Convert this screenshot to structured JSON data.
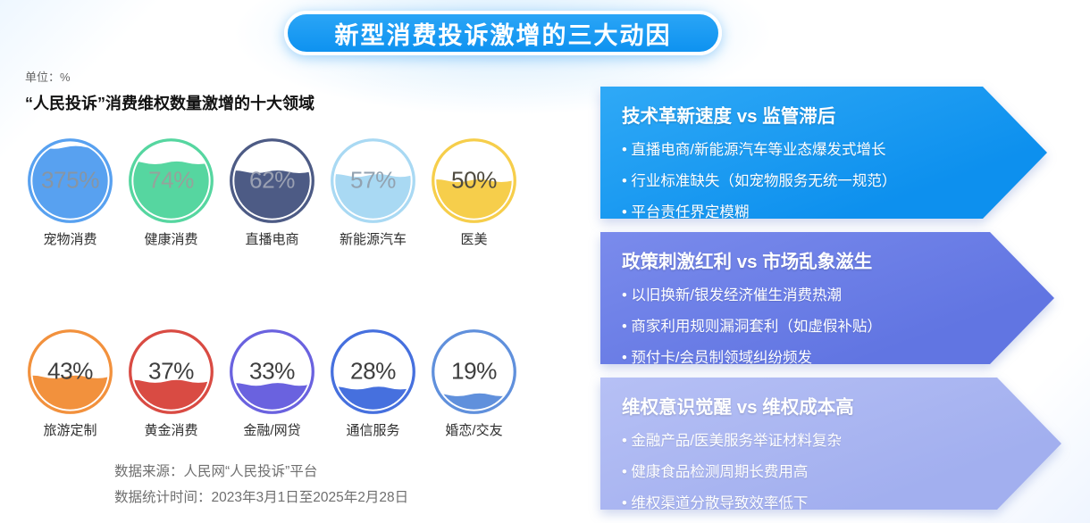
{
  "page": {
    "title": "新型消费投诉激增的三大动因",
    "unit_label": "单位：%",
    "section_heading": "“人民投诉”消费维权数量激增的十大领域",
    "source_note": "数据来源：人民网“人民投诉”平台",
    "period_note": "数据统计时间：2023年3月1日至2025年2月28日",
    "title_color": "#189BF2"
  },
  "chart_data": {
    "type": "liquid-gauge",
    "title": "“人民投诉”消费维权数量激增的十大领域",
    "unit": "%",
    "layout": "2 rows x 5 liquid-fill circles",
    "categories": [
      "宠物消费",
      "健康消费",
      "直播电商",
      "新能源汽车",
      "医美",
      "旅游定制",
      "黄金消费",
      "金融/网贷",
      "通信服务",
      "婚恋/交友"
    ],
    "values": [
      375,
      74,
      62,
      57,
      50,
      43,
      37,
      33,
      28,
      19
    ],
    "source": "人民网“人民投诉”平台",
    "period": "2023年3月1日至2025年2月28日",
    "items": [
      {
        "label": "宠物消费",
        "value": 375,
        "value_label": "375%",
        "color": "#58A1F0",
        "value_color": "#8795A3"
      },
      {
        "label": "健康消费",
        "value": 74,
        "value_label": "74%",
        "color": "#56D6A0",
        "value_color": "#95A39B"
      },
      {
        "label": "直播电商",
        "value": 62,
        "value_label": "62%",
        "color": "#4D5B85",
        "value_color": "#9AA0B2"
      },
      {
        "label": "新能源汽车",
        "value": 57,
        "value_label": "57%",
        "color": "#A9D9F3",
        "value_color": "#92A2B0"
      },
      {
        "label": "医美",
        "value": 50,
        "value_label": "50%",
        "color": "#F6CE4B",
        "value_color": "#4F4B40"
      },
      {
        "label": "旅游定制",
        "value": 43,
        "value_label": "43%",
        "color": "#F2913D",
        "value_color": "#3E3E3E"
      },
      {
        "label": "黄金消费",
        "value": 37,
        "value_label": "37%",
        "color": "#D94B43",
        "value_color": "#3E3E3E"
      },
      {
        "label": "金融/网贷",
        "value": 33,
        "value_label": "33%",
        "color": "#6A62DF",
        "value_color": "#3E3E3E"
      },
      {
        "label": "通信服务",
        "value": 28,
        "value_label": "28%",
        "color": "#4670DE",
        "value_color": "#3E3E3E"
      },
      {
        "label": "婚恋/交友",
        "value": 19,
        "value_label": "19%",
        "color": "#6090DC",
        "value_color": "#3E3E3E"
      }
    ]
  },
  "factors": [
    {
      "heading": "技术革新速度 vs 监管滞后",
      "color": "#0D90EE",
      "color_light": "#2FA9F6",
      "bullets": [
        "直播电商/新能源汽车等业态爆发式增长",
        "行业标准缺失（如宠物服务无统一规范）",
        "平台责任界定模糊"
      ]
    },
    {
      "heading": "政策刺激红利 vs 市场乱象滋生",
      "color": "#6175E2",
      "color_light": "#7A8BEC",
      "bullets": [
        "以旧换新/银发经济催生消费热潮",
        "商家利用规则漏洞套利（如虚假补贴）",
        "预付卡/会员制领域纠纷频发"
      ]
    },
    {
      "heading": "维权意识觉醒 vs 维权成本高",
      "color": "#A2AFEF",
      "color_light": "#B6C0F5",
      "bullets": [
        "金融产品/医美服务举证材料复杂",
        "健康食品检测周期长费用高",
        "维权渠道分散导致效率低下"
      ]
    }
  ]
}
